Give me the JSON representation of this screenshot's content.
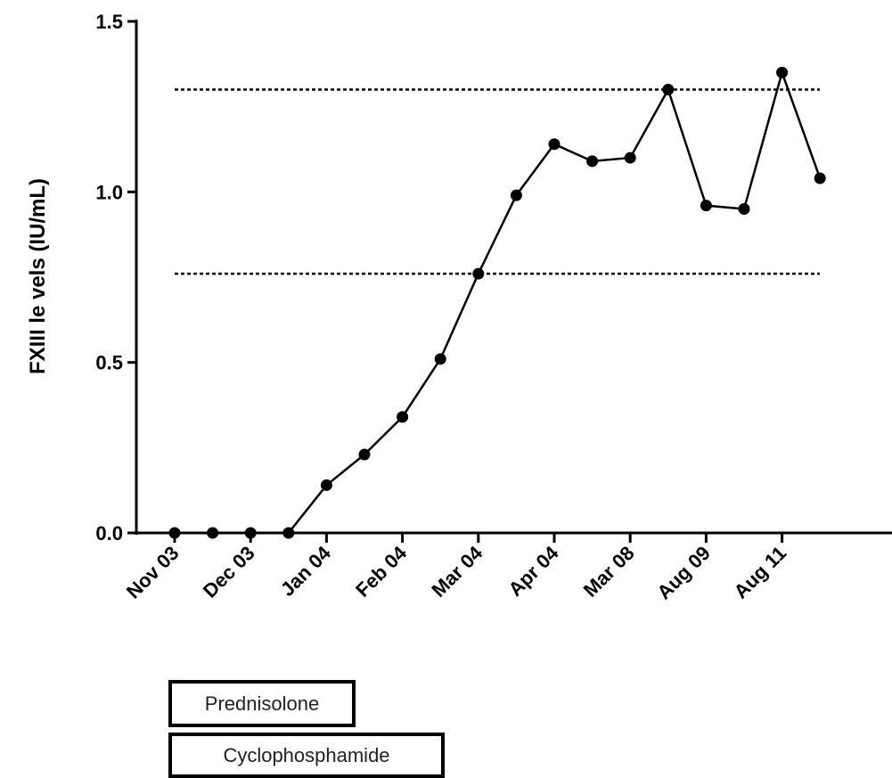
{
  "chart_data": {
    "type": "line",
    "ylabel": "FXIII le vels (IU/mL)",
    "xlabel": "",
    "title": "",
    "ylim": [
      0,
      1.5
    ],
    "yticks": [
      "0.0",
      "0.5",
      "1.0",
      "1.5"
    ],
    "yticks_values": [
      0,
      0.5,
      1.0,
      1.5
    ],
    "x_tick_labels": [
      "Nov 03",
      "Dec 03",
      "Jan 04",
      "Feb 04",
      "Mar 04",
      "Apr 04",
      "Mar 08",
      "Aug 09",
      "Aug 11"
    ],
    "x_tick_index": [
      0,
      2,
      4,
      6,
      8,
      10,
      12,
      14,
      16
    ],
    "series": [
      {
        "x": [
          0,
          1,
          2,
          3,
          4,
          5,
          6,
          7,
          8,
          9,
          10,
          11,
          12,
          13,
          14,
          15,
          16,
          17
        ],
        "values": [
          0,
          0,
          0,
          0,
          0.14,
          0.23,
          0.34,
          0.51,
          0.76,
          0.99,
          1.14,
          1.09,
          1.1,
          1.3,
          0.96,
          0.95,
          1.35,
          1.04
        ]
      }
    ],
    "reference_lines": [
      0.76,
      1.3
    ],
    "grid": false,
    "legend": "none"
  },
  "annotations": {
    "prednisolone": "Prednisolone",
    "cyclophosphamide": "Cyclophosphamide"
  }
}
